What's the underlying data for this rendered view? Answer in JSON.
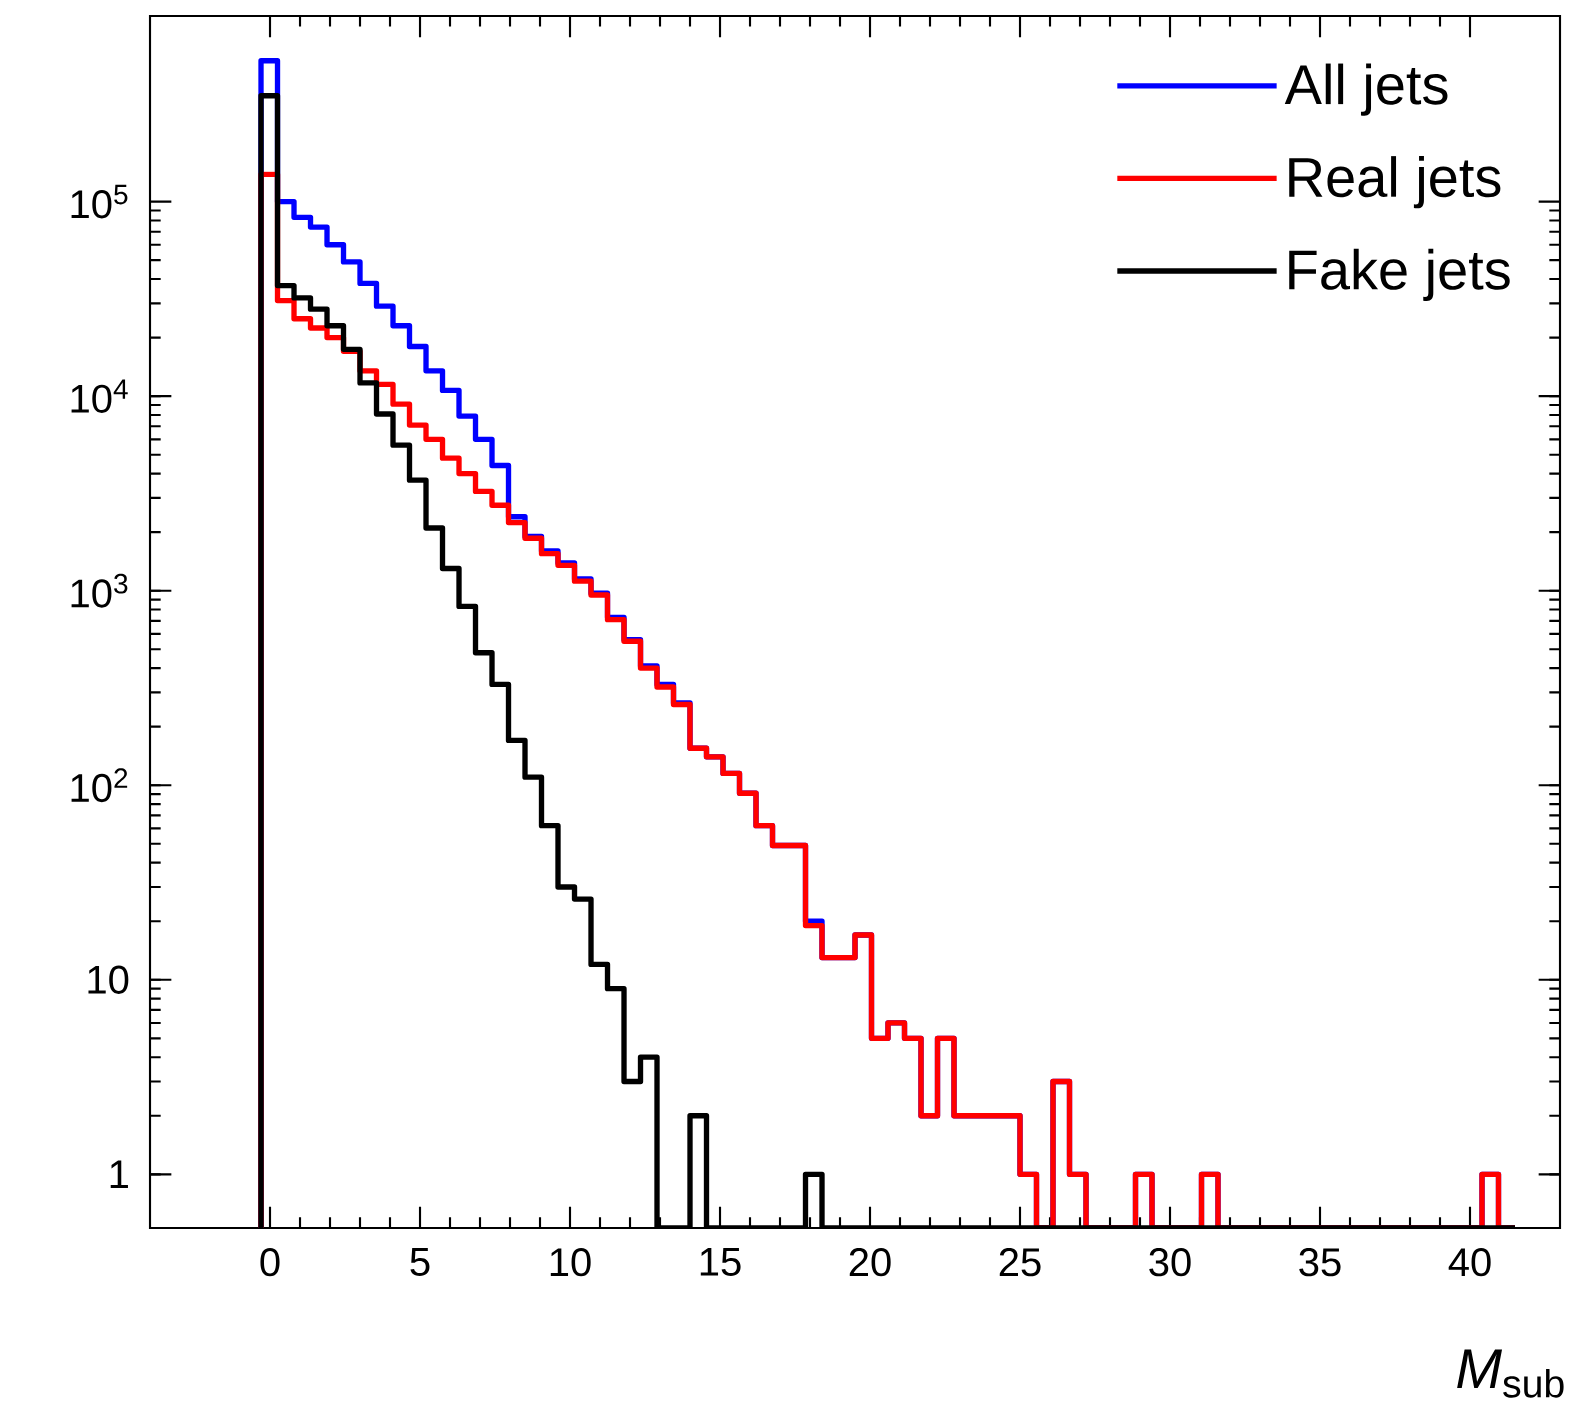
{
  "chart_data": {
    "type": "histogram",
    "xlabel": "*M*$_{sub}$",
    "log": "y",
    "legend": "top right",
    "xlim": [
      -4,
      43
    ],
    "ylim": [
      0.53,
      900000
    ],
    "xticks": [
      0,
      5,
      10,
      15,
      20,
      25,
      30,
      35,
      40
    ],
    "yticks": [
      1,
      10,
      {
        "value": 100,
        "label": "10$^{2}$"
      },
      {
        "value": 1000,
        "label": "10$^{3}$"
      },
      {
        "value": 10000,
        "label": "10$^{4}$"
      },
      {
        "value": 100000,
        "label": "10$^{5}$"
      }
    ],
    "bins": [
      -0.3,
      0.25,
      0.8,
      1.35,
      1.9,
      2.45,
      3,
      3.55,
      4.1,
      4.65,
      5.2,
      5.75,
      6.3,
      6.85,
      7.4,
      7.95,
      8.5,
      9.05,
      9.6,
      10.15,
      10.7,
      11.25,
      11.8,
      12.35,
      12.9,
      13.45,
      14,
      14.55,
      15.1,
      15.65,
      16.2,
      16.75,
      17.3,
      17.85,
      18.4,
      18.95,
      19.5,
      20.05,
      20.6,
      21.15,
      21.7,
      22.25,
      22.8,
      23.35,
      23.9,
      24.45,
      25,
      25.55,
      26.1,
      26.65,
      27.2,
      27.75,
      28.3,
      28.85,
      29.4,
      29.95,
      30.5,
      31.05,
      31.6,
      32.15,
      32.7,
      33.25,
      33.8,
      34.35,
      34.9,
      35.45,
      36,
      36.55,
      37.1,
      37.65,
      38.2,
      38.75,
      39.3,
      39.85,
      40.4,
      40.95,
      41.5
    ],
    "series": [
      {
        "name": "All jets",
        "color": "#0000ff",
        "values": [
          530000,
          100000,
          83000,
          74000,
          60000,
          49000,
          38000,
          29000,
          23000,
          18000,
          13500,
          10700,
          7900,
          6000,
          4400,
          2400,
          1900,
          1600,
          1390,
          1150,
          970,
          730,
          560,
          410,
          330,
          265,
          155,
          140,
          115,
          91,
          62,
          49,
          49,
          20,
          13,
          13,
          17,
          5,
          6,
          5,
          2,
          5,
          2,
          2,
          2,
          2,
          1,
          null,
          3,
          1,
          null,
          null,
          null,
          1,
          null,
          null,
          null,
          1,
          null,
          null,
          null,
          null,
          null,
          null,
          null,
          null,
          null,
          null,
          null,
          null,
          null,
          null,
          null,
          null,
          1,
          null
        ]
      },
      {
        "name": "Real jets",
        "color": "#ff0000",
        "values": [
          138000,
          31000,
          25000,
          22400,
          20000,
          17000,
          13500,
          11500,
          9100,
          7100,
          6000,
          4800,
          4000,
          3240,
          2750,
          2240,
          1860,
          1550,
          1350,
          1120,
          950,
          710,
          550,
          400,
          320,
          260,
          155,
          140,
          115,
          91,
          62,
          49,
          49,
          19,
          13,
          13,
          17,
          5,
          6,
          5,
          2,
          5,
          2,
          2,
          2,
          2,
          1,
          null,
          3,
          1,
          null,
          null,
          null,
          1,
          null,
          null,
          null,
          1,
          null,
          null,
          null,
          null,
          null,
          null,
          null,
          null,
          null,
          null,
          null,
          null,
          null,
          null,
          null,
          null,
          1,
          null
        ]
      },
      {
        "name": "Fake jets",
        "color": "#000000",
        "values": [
          350000,
          37000,
          32000,
          28000,
          23000,
          17400,
          11700,
          8100,
          5600,
          3700,
          2100,
          1300,
          830,
          480,
          330,
          170,
          110,
          62,
          30,
          26,
          12,
          9,
          3,
          4,
          null,
          null,
          2,
          null,
          null,
          null,
          null,
          null,
          null,
          1,
          null,
          null,
          null,
          null,
          null,
          null,
          null,
          null,
          null,
          null,
          null,
          null,
          null,
          null,
          null,
          null,
          null,
          null,
          null,
          null,
          null,
          null,
          null,
          null,
          null,
          null,
          null,
          null,
          null,
          null,
          null,
          null,
          null,
          null,
          null,
          null,
          null,
          null,
          null,
          null,
          null,
          null
        ]
      }
    ]
  }
}
